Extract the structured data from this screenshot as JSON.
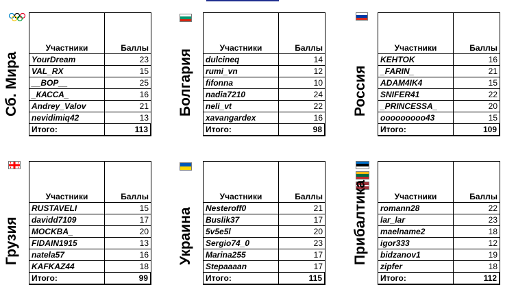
{
  "header": {
    "participant_label": "Участники",
    "score_label": "Баллы",
    "total_label": "Итого:"
  },
  "teams": [
    {
      "name": "Сб. Мира",
      "flag": "olympic-rings",
      "members": [
        {
          "name": "YourDream",
          "score": "23"
        },
        {
          "name": "VAL_RX",
          "score": "15"
        },
        {
          "name": "__BOP__",
          "score": "25"
        },
        {
          "name": "_КАССА_",
          "score": "16"
        },
        {
          "name": "Andrey_Valov",
          "score": "21"
        },
        {
          "name": "nevidimiq42",
          "score": "13"
        }
      ],
      "total": "113"
    },
    {
      "name": "Болгария",
      "flag": "bulgaria",
      "members": [
        {
          "name": "dulcineq",
          "score": "14"
        },
        {
          "name": "rumi_vn",
          "score": "12"
        },
        {
          "name": "fifonna",
          "score": "10"
        },
        {
          "name": "nadia7210",
          "score": "24"
        },
        {
          "name": "neli_vt",
          "score": "22"
        },
        {
          "name": "xavangardex",
          "score": "16"
        }
      ],
      "total": "98"
    },
    {
      "name": "Россия",
      "flag": "russia",
      "members": [
        {
          "name": "KEHTOK",
          "score": "16"
        },
        {
          "name": "_FARIN_",
          "score": "21"
        },
        {
          "name": "ADAM4IK4",
          "score": "15"
        },
        {
          "name": "SNIFER41",
          "score": "22"
        },
        {
          "name": "_PRINCESSA_",
          "score": "20"
        },
        {
          "name": "ooooooooo43",
          "score": "15"
        }
      ],
      "total": "109"
    },
    {
      "name": "Грузия",
      "flag": "georgia",
      "members": [
        {
          "name": "RUSTAVELI",
          "score": "15"
        },
        {
          "name": "davidd7109",
          "score": "17"
        },
        {
          "name": "MOCKBA_",
          "score": "20"
        },
        {
          "name": "FIDAIN1915",
          "score": "13"
        },
        {
          "name": "natela57",
          "score": "16"
        },
        {
          "name": "KAFKAZ44",
          "score": "18"
        }
      ],
      "total": "99"
    },
    {
      "name": "Украина",
      "flag": "ukraine",
      "members": [
        {
          "name": "Nesteroff0",
          "score": "21"
        },
        {
          "name": "Buslik37",
          "score": "17"
        },
        {
          "name": "5v5e5l",
          "score": "20"
        },
        {
          "name": "Sergio74_0",
          "score": "23"
        },
        {
          "name": "Marina255",
          "score": "17"
        },
        {
          "name": "Stepaaaan",
          "score": "17"
        }
      ],
      "total": "115"
    },
    {
      "name": "Прибалтика",
      "flag": "estonia-lithuania-latvia",
      "members": [
        {
          "name": "romann28",
          "score": "22"
        },
        {
          "name": "lar_lar",
          "score": "23"
        },
        {
          "name": "maelname2",
          "score": "18"
        },
        {
          "name": "igor333",
          "score": "12"
        },
        {
          "name": "bidzanov1",
          "score": "19"
        },
        {
          "name": "zipfer",
          "score": "18"
        }
      ],
      "total": "112"
    }
  ],
  "colors": {
    "bulgaria": [
      "#ffffff",
      "#00966e",
      "#d62612"
    ],
    "russia": [
      "#ffffff",
      "#0039a6",
      "#d52b1e"
    ],
    "ukraine": [
      "#0057b8",
      "#ffd700"
    ],
    "georgia": [
      "#ffffff",
      "#ff0000"
    ]
  }
}
